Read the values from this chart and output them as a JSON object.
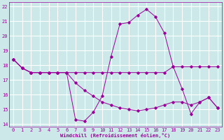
{
  "xlabel": "Windchill (Refroidissement éolien,°C)",
  "bg_color": "#cce8e8",
  "grid_color": "#ffffff",
  "line_color": "#990099",
  "xlim": [
    -0.5,
    23.5
  ],
  "ylim": [
    13.8,
    22.3
  ],
  "xticks": [
    0,
    1,
    2,
    3,
    4,
    5,
    6,
    7,
    8,
    9,
    10,
    11,
    12,
    13,
    14,
    15,
    16,
    17,
    18,
    19,
    20,
    21,
    22,
    23
  ],
  "yticks": [
    14,
    15,
    16,
    17,
    18,
    19,
    20,
    21,
    22
  ],
  "series": [
    {
      "x": [
        0,
        1,
        2,
        3,
        4,
        5,
        6,
        7,
        8,
        9,
        10,
        11,
        12,
        13,
        14,
        15,
        16,
        17,
        18,
        19,
        20,
        21,
        22,
        23
      ],
      "y": [
        18.4,
        17.8,
        17.5,
        17.5,
        17.5,
        17.5,
        17.5,
        14.3,
        14.2,
        14.8,
        15.9,
        18.6,
        20.8,
        20.9,
        21.4,
        21.8,
        21.3,
        20.2,
        17.9,
        17.9,
        17.9,
        17.9,
        17.9,
        17.9
      ]
    },
    {
      "x": [
        0,
        1,
        2,
        3,
        4,
        5,
        6,
        7,
        8,
        9,
        10,
        11,
        12,
        13,
        14,
        15,
        16,
        17,
        18,
        19,
        20,
        21,
        22,
        23
      ],
      "y": [
        18.4,
        17.8,
        17.5,
        17.5,
        17.5,
        17.5,
        17.5,
        17.5,
        17.5,
        17.5,
        17.5,
        17.5,
        17.5,
        17.5,
        17.5,
        17.5,
        17.5,
        17.5,
        17.9,
        16.4,
        14.7,
        15.5,
        15.8,
        15.1
      ]
    },
    {
      "x": [
        0,
        1,
        2,
        3,
        4,
        5,
        6,
        7,
        8,
        9,
        10,
        11,
        12,
        13,
        14,
        15,
        16,
        17,
        18,
        19,
        20,
        21,
        22,
        23
      ],
      "y": [
        18.4,
        17.8,
        17.5,
        17.5,
        17.5,
        17.5,
        17.5,
        16.8,
        16.3,
        15.9,
        15.5,
        15.3,
        15.1,
        15.0,
        14.9,
        15.0,
        15.1,
        15.3,
        15.5,
        15.5,
        15.3,
        15.5,
        15.8,
        15.1
      ]
    }
  ]
}
